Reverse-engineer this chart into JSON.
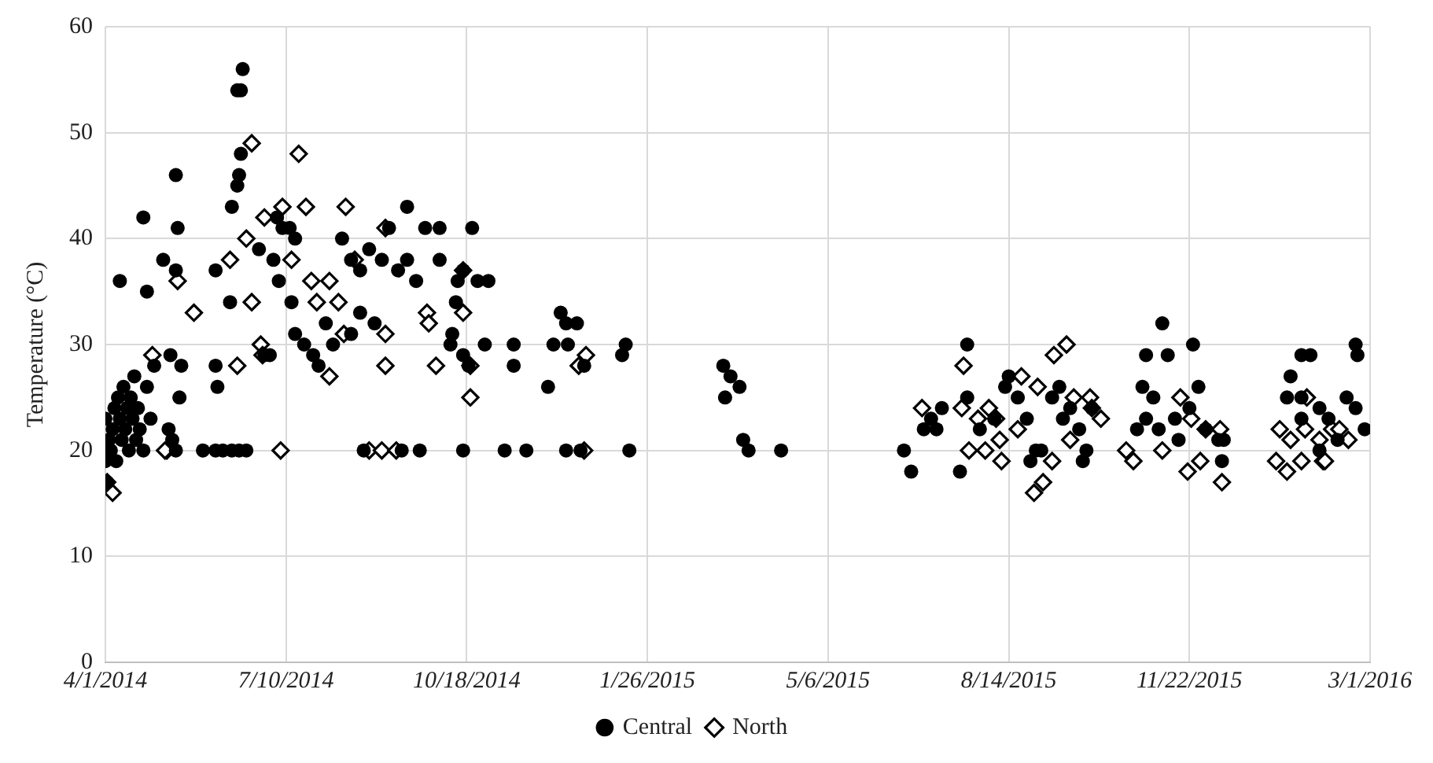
{
  "chart_data": {
    "type": "scatter",
    "ylabel": "Temperature (°C)",
    "legend": "bottom",
    "grid": true,
    "xlim": [
      "2014-04-01",
      "2016-03-01"
    ],
    "xticks": [
      {
        "value": "2014-04-01",
        "label": "4/1/2014"
      },
      {
        "value": "2014-07-10",
        "label": "7/10/2014"
      },
      {
        "value": "2014-10-18",
        "label": "10/18/2014"
      },
      {
        "value": "2015-01-26",
        "label": "1/26/2015"
      },
      {
        "value": "2015-05-06",
        "label": "5/6/2015"
      },
      {
        "value": "2015-08-14",
        "label": "8/14/2015"
      },
      {
        "value": "2015-11-22",
        "label": "11/22/2015"
      },
      {
        "value": "2016-03-01",
        "label": "3/1/2016"
      }
    ],
    "ylim": [
      0,
      60
    ],
    "yticks": [
      0,
      10,
      20,
      30,
      40,
      50,
      60
    ],
    "series": [
      {
        "name": "Central",
        "color": "#000000",
        "marker": "circle",
        "x": [
          "2014-04-01",
          "2014-04-01",
          "2014-04-02",
          "2014-04-03",
          "2014-04-04",
          "2014-04-05",
          "2014-04-06",
          "2014-04-07",
          "2014-04-08",
          "2014-04-09",
          "2014-04-10",
          "2014-04-11",
          "2014-04-12",
          "2014-04-13",
          "2014-04-14",
          "2014-04-15",
          "2014-04-16",
          "2014-04-17",
          "2014-04-18",
          "2014-04-19",
          "2014-04-20",
          "2014-04-22",
          "2014-04-24",
          "2014-04-26",
          "2014-04-28",
          "2014-04-09",
          "2014-04-22",
          "2014-04-24",
          "2014-05-03",
          "2014-05-07",
          "2014-05-10",
          "2014-05-11",
          "2014-05-10",
          "2014-05-12",
          "2014-05-13",
          "2014-05-06",
          "2014-05-08",
          "2014-05-10",
          "2014-05-25",
          "2014-06-01",
          "2014-06-05",
          "2014-06-10",
          "2014-06-14",
          "2014-06-18",
          "2014-06-01",
          "2014-06-01",
          "2014-06-02",
          "2014-06-10",
          "2014-06-13",
          "2014-06-14",
          "2014-06-15",
          "2014-06-13",
          "2014-06-15",
          "2014-06-16",
          "2014-06-09",
          "2014-07-05",
          "2014-07-08",
          "2014-07-12",
          "2014-07-15",
          "2014-06-25",
          "2014-07-03",
          "2014-07-06",
          "2014-07-13",
          "2014-07-15",
          "2014-07-20",
          "2014-07-25",
          "2014-08-01",
          "2014-08-05",
          "2014-07-28",
          "2014-06-28",
          "2014-07-01",
          "2014-08-10",
          "2014-08-15",
          "2014-08-20",
          "2014-08-25",
          "2014-09-01",
          "2014-09-05",
          "2014-09-10",
          "2014-09-15",
          "2014-09-20",
          "2014-09-25",
          "2014-08-20",
          "2014-08-28",
          "2014-09-15",
          "2014-08-15",
          "2014-08-22",
          "2014-09-12",
          "2014-09-22",
          "2014-10-03",
          "2014-10-03",
          "2014-10-21",
          "2014-10-16",
          "2014-10-24",
          "2014-10-30",
          "2014-10-13",
          "2014-10-12",
          "2014-10-10",
          "2014-10-09",
          "2014-10-16",
          "2014-10-19",
          "2014-10-28",
          "2014-11-13",
          "2014-11-13",
          "2014-10-16",
          "2014-11-08",
          "2014-11-20",
          "2014-12-09",
          "2014-12-12",
          "2014-12-18",
          "2014-12-05",
          "2014-12-13",
          "2014-12-22",
          "2014-12-02",
          "2014-12-12",
          "2014-12-20",
          "2015-01-12",
          "2015-01-14",
          "2015-01-16",
          "2015-03-09",
          "2015-03-13",
          "2015-03-18",
          "2015-03-10",
          "2015-03-20",
          "2015-03-23",
          "2015-04-10",
          "2015-06-21",
          "2015-07-18",
          "2015-06-17",
          "2015-06-28",
          "2015-07-02",
          "2015-07-08",
          "2015-07-22",
          "2015-07-22",
          "2015-07-29",
          "2015-08-06",
          "2015-08-12",
          "2015-08-14",
          "2015-08-19",
          "2015-08-24",
          "2015-08-29",
          "2015-09-01",
          "2015-08-26",
          "2015-09-07",
          "2015-09-11",
          "2015-09-13",
          "2015-09-17",
          "2015-09-22",
          "2015-09-24",
          "2015-09-26",
          "2015-09-29",
          "2015-07-05",
          "2015-11-07",
          "2015-10-29",
          "2015-11-10",
          "2015-11-24",
          "2015-10-27",
          "2015-11-02",
          "2015-10-29",
          "2015-11-05",
          "2015-11-14",
          "2015-11-27",
          "2015-11-22",
          "2015-12-01",
          "2015-12-08",
          "2015-12-11",
          "2015-11-16",
          "2015-12-10",
          "2015-10-24",
          "2016-01-17",
          "2016-01-23",
          "2016-01-28",
          "2016-01-15",
          "2016-01-23",
          "2016-02-02",
          "2016-02-07",
          "2016-02-12",
          "2016-02-17",
          "2016-02-22",
          "2016-02-22",
          "2016-02-23",
          "2016-02-27",
          "2016-01-23",
          "2016-02-02"
        ],
        "values": [
          19,
          23,
          17,
          21,
          20,
          22,
          24,
          19,
          25,
          23,
          21,
          26,
          22,
          24,
          20,
          25,
          23,
          27,
          21,
          24,
          22,
          20,
          26,
          23,
          28,
          36,
          42,
          35,
          38,
          29,
          46,
          41,
          37,
          25,
          28,
          22,
          21,
          20,
          20,
          20,
          20,
          20,
          20,
          20,
          37,
          28,
          26,
          43,
          45,
          46,
          48,
          54,
          54,
          56,
          34,
          42,
          41,
          41,
          40,
          39,
          38,
          36,
          34,
          31,
          30,
          29,
          32,
          30,
          28,
          29,
          29,
          40,
          38,
          37,
          39,
          38,
          41,
          37,
          38,
          36,
          41,
          33,
          32,
          43,
          31,
          20,
          20,
          20,
          41,
          38,
          41,
          37,
          36,
          36,
          36,
          34,
          31,
          30,
          29,
          28,
          30,
          30,
          28,
          20,
          20,
          20,
          33,
          32,
          32,
          30,
          30,
          28,
          26,
          20,
          20,
          29,
          30,
          20,
          28,
          27,
          26,
          25,
          21,
          20,
          20,
          18,
          18,
          20,
          22,
          23,
          24,
          25,
          30,
          22,
          23,
          26,
          27,
          25,
          23,
          20,
          20,
          19,
          25,
          26,
          23,
          24,
          22,
          19,
          20,
          24,
          22,
          32,
          29,
          29,
          30,
          26,
          25,
          23,
          22,
          23,
          26,
          24,
          22,
          21,
          21,
          21,
          19,
          22,
          27,
          29,
          29,
          25,
          23,
          24,
          23,
          21,
          25,
          24,
          30,
          29,
          22,
          25,
          20
        ]
      },
      {
        "name": "North",
        "color": "#000000",
        "marker": "diamond",
        "x": [
          "2014-04-02",
          "2014-04-05",
          "2014-04-27",
          "2014-05-05",
          "2014-05-11",
          "2014-05-20",
          "2014-06-09",
          "2014-06-13",
          "2014-06-18",
          "2014-06-21",
          "2014-06-26",
          "2014-06-27",
          "2014-06-21",
          "2014-07-17",
          "2014-06-28",
          "2014-07-08",
          "2014-07-21",
          "2014-08-12",
          "2014-07-13",
          "2014-07-24",
          "2014-08-03",
          "2014-07-27",
          "2014-08-08",
          "2014-08-11",
          "2014-08-03",
          "2014-09-03",
          "2014-08-17",
          "2014-09-03",
          "2014-09-03",
          "2014-09-26",
          "2014-09-27",
          "2014-10-01",
          "2014-10-16",
          "2014-10-16",
          "2014-10-20",
          "2014-10-20",
          "2014-05-04",
          "2014-07-07",
          "2014-08-25",
          "2014-09-01",
          "2014-09-09",
          "2014-12-19",
          "2014-12-23",
          "2014-12-22",
          "2015-06-27",
          "2015-07-20",
          "2015-07-19",
          "2015-07-28",
          "2015-08-03",
          "2015-08-07",
          "2015-07-23",
          "2015-08-01",
          "2015-08-09",
          "2015-08-10",
          "2015-08-21",
          "2015-08-30",
          "2015-08-28",
          "2015-09-02",
          "2015-09-07",
          "2015-09-08",
          "2015-09-15",
          "2015-09-19",
          "2015-09-17",
          "2015-09-28",
          "2015-09-29",
          "2015-10-04",
          "2015-08-19",
          "2015-10-18",
          "2015-10-22",
          "2015-11-07",
          "2015-11-17",
          "2015-11-21",
          "2015-11-28",
          "2015-12-01",
          "2015-12-09",
          "2015-12-10",
          "2015-11-23",
          "2016-01-11",
          "2016-01-09",
          "2016-01-15",
          "2016-01-17",
          "2016-01-23",
          "2016-01-25",
          "2016-02-04",
          "2016-02-02",
          "2016-02-05",
          "2016-02-09",
          "2016-02-13",
          "2016-02-18",
          "2016-01-26"
        ],
        "values": [
          17,
          16,
          29,
          20,
          36,
          33,
          38,
          28,
          40,
          34,
          30,
          29,
          49,
          48,
          42,
          43,
          43,
          43,
          38,
          36,
          36,
          34,
          34,
          31,
          27,
          41,
          38,
          31,
          28,
          33,
          32,
          28,
          37,
          33,
          28,
          25,
          20,
          20,
          20,
          20,
          20,
          28,
          29,
          20,
          24,
          28,
          24,
          23,
          24,
          23,
          20,
          20,
          21,
          19,
          27,
          26,
          16,
          17,
          19,
          29,
          30,
          25,
          21,
          25,
          24,
          23,
          22,
          20,
          19,
          20,
          25,
          18,
          19,
          22,
          22,
          17,
          23,
          22,
          19,
          18,
          21,
          19,
          22,
          19,
          21,
          19,
          22,
          22,
          21,
          25
        ]
      }
    ]
  }
}
